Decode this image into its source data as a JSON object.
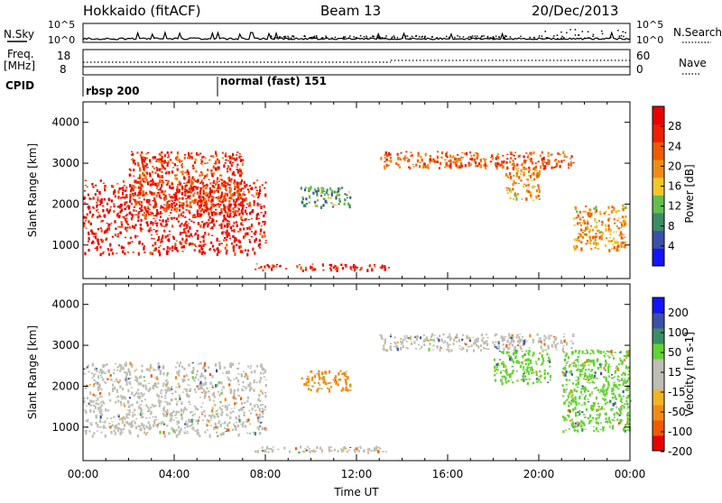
{
  "header": {
    "station": "Hokkaido (fitACF)",
    "beam": "Beam 13",
    "date": "20/Dec/2013"
  },
  "top_panels": {
    "nsky_label": "N.Sky",
    "nsearch_label": "N.Search",
    "nsky_ticks": [
      "10^5",
      "10^0"
    ],
    "nsearch_ticks": [
      "10^5",
      "10^0"
    ],
    "freq_label_1": "Freq.",
    "freq_label_2": "[MHz]",
    "freq_ticks": [
      "18",
      "8"
    ],
    "nave_label": "Nave",
    "nave_ticks": [
      "60",
      "0"
    ],
    "cpid_label": "CPID",
    "cpid_segments": [
      {
        "name": "rbsp 200",
        "start_hour": 0,
        "end_hour": 6
      },
      {
        "name": "normal (fast) 151",
        "start_hour": 6,
        "end_hour": 24
      }
    ]
  },
  "colors": {
    "power_scale": [
      "#1414ff",
      "#3c50aa",
      "#3c8c64",
      "#64be50",
      "#f0c828",
      "#f08c14",
      "#f05a00",
      "#f01e00",
      "#e60000"
    ],
    "velocity_scale": [
      "#e60000",
      "#f05a00",
      "#f08c14",
      "#f0b428",
      "#bebeb4",
      "#bebeb4",
      "#64d232",
      "#3c8c64",
      "#3c50aa",
      "#1414ff"
    ],
    "ground_scatter": "#bebeb4"
  },
  "chart_data": [
    {
      "type": "heatmap",
      "title": "Power",
      "ylabel": "Slant Range [km]",
      "xlabel": "",
      "x_range_hours": [
        0,
        24
      ],
      "ylim": [
        180,
        4500
      ],
      "y_ticks": [
        1000,
        2000,
        3000,
        4000
      ],
      "colorbar_label": "Power [dB]",
      "colorbar_ticks": [
        4,
        8,
        12,
        16,
        20,
        24,
        28
      ],
      "colorbar_range": [
        0,
        30
      ],
      "regions": [
        {
          "t0": 0.0,
          "t1": 8.0,
          "r0": 800,
          "r1": 2600,
          "value": 27
        },
        {
          "t0": 2.0,
          "t1": 7.0,
          "r0": 1700,
          "r1": 3300,
          "value": 24
        },
        {
          "t0": 7.5,
          "t1": 13.5,
          "r0": 400,
          "r1": 550,
          "value": 26
        },
        {
          "t0": 9.5,
          "t1": 11.7,
          "r0": 1950,
          "r1": 2450,
          "value": 10
        },
        {
          "t0": 13.0,
          "t1": 21.5,
          "r0": 2900,
          "r1": 3300,
          "value": 22
        },
        {
          "t0": 18.5,
          "t1": 20.0,
          "r0": 2100,
          "r1": 2900,
          "value": 18
        },
        {
          "t0": 21.5,
          "t1": 23.8,
          "r0": 900,
          "r1": 2000,
          "value": 18
        }
      ]
    },
    {
      "type": "heatmap",
      "title": "Velocity",
      "ylabel": "Slant Range [km]",
      "xlabel": "Time UT",
      "x_range_hours": [
        0,
        24
      ],
      "x_tick_labels": [
        "00:00",
        "04:00",
        "08:00",
        "12:00",
        "16:00",
        "20:00",
        "00:00"
      ],
      "ylim": [
        180,
        4500
      ],
      "y_ticks": [
        1000,
        2000,
        3000,
        4000
      ],
      "colorbar_label": "Velocity [m s-1]",
      "colorbar_ticks": [
        200,
        100,
        50,
        15,
        -15,
        -50,
        -100,
        -200
      ],
      "regions": [
        {
          "t0": 0.0,
          "t1": 8.0,
          "r0": 800,
          "r1": 2600,
          "value": 0
        },
        {
          "t0": 7.5,
          "t1": 13.5,
          "r0": 400,
          "r1": 550,
          "value": 0
        },
        {
          "t0": 9.5,
          "t1": 11.7,
          "r0": 1900,
          "r1": 2400,
          "value": -60
        },
        {
          "t0": 13.0,
          "t1": 21.5,
          "r0": 2900,
          "r1": 3300,
          "value": 0
        },
        {
          "t0": 18.0,
          "t1": 20.5,
          "r0": 2100,
          "r1": 2900,
          "value": 40
        },
        {
          "t0": 21.0,
          "t1": 24.0,
          "r0": 900,
          "r1": 2900,
          "value": 40
        }
      ]
    }
  ]
}
